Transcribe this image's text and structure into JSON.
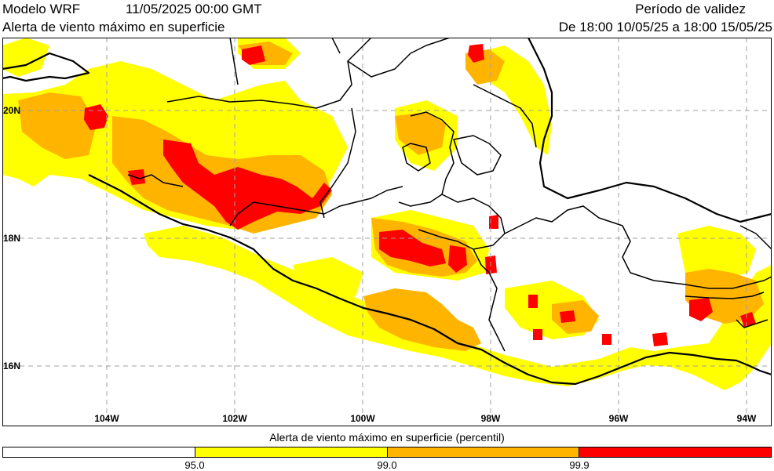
{
  "header": {
    "model": "Modelo WRF",
    "init_time": "11/05/2025 00:00 GMT",
    "title": "Alerta de viento máximo en superficie",
    "validity_label": "Período de validez",
    "validity_range": "De 18:00 10/05/25 a 18:00 15/05/25"
  },
  "map": {
    "lat_labels": [
      "20N",
      "18N",
      "16N"
    ],
    "lon_labels": [
      "104W",
      "102W",
      "100W",
      "98W",
      "96W",
      "94W"
    ],
    "colors": {
      "land": "#ffffff",
      "p95": "#ffff00",
      "p99": "#ffb400",
      "p999": "#ff0000",
      "border": "#000000",
      "grid": "#a0a0a0"
    }
  },
  "colorbar": {
    "title": "Alerta de viento máximo en superficie (percentil)",
    "colors": [
      "#ffffff",
      "#ffff00",
      "#ffb400",
      "#ff0000"
    ],
    "labels": [
      "95.0",
      "99.0",
      "99.9"
    ]
  }
}
